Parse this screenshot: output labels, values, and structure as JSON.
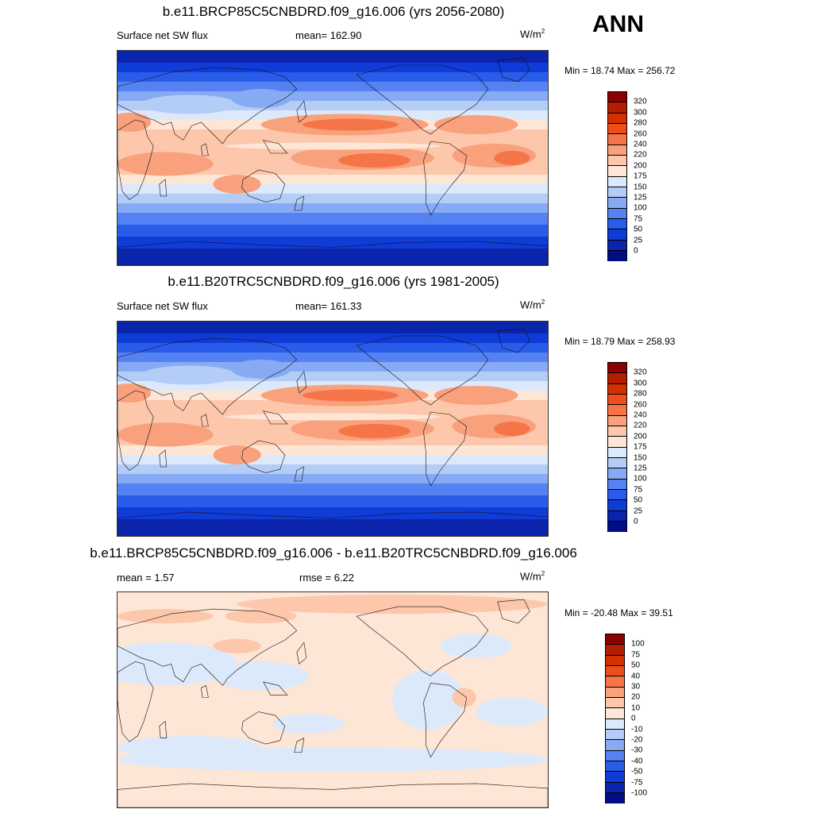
{
  "season": "ANN",
  "panels": [
    {
      "title": "b.e11.BRCP85C5CNBDRD.f09_g16.006 (yrs 2056-2080)",
      "left_label": "Surface net SW flux",
      "mid_label": "mean= 162.90",
      "units_base": "W/m",
      "units_sup": "2",
      "minmax": "Min =  18.74 Max = 256.72",
      "kind": "abs"
    },
    {
      "title": "b.e11.B20TRC5CNBDRD.f09_g16.006 (yrs 1981-2005)",
      "left_label": "Surface net SW flux",
      "mid_label": "mean= 161.33",
      "units_base": "W/m",
      "units_sup": "2",
      "minmax": "Min =  18.79 Max = 258.93",
      "kind": "abs"
    },
    {
      "title": "b.e11.BRCP85C5CNBDRD.f09_g16.006 - b.e11.B20TRC5CNBDRD.f09_g16.006",
      "left_label": "mean =   1.57",
      "mid_label": "rmse =   6.22",
      "units_base": "W/m",
      "units_sup": "2",
      "minmax": "Min = -20.48 Max =  39.51",
      "kind": "diff"
    }
  ],
  "colorbars": {
    "abs": {
      "ticks": [
        "320",
        "300",
        "280",
        "260",
        "240",
        "220",
        "200",
        "175",
        "150",
        "125",
        "100",
        "75",
        "50",
        "25",
        "0"
      ],
      "colors": [
        "#8b0000",
        "#b31d00",
        "#d33200",
        "#ef4e1a",
        "#f57548",
        "#f9a07c",
        "#fcc7ab",
        "#fee6d6",
        "#dbe9fb",
        "#b4cdf7",
        "#87aaf5",
        "#5582f2",
        "#2a5cea",
        "#0f3bd6",
        "#0a24ac",
        "#000e85"
      ]
    },
    "diff": {
      "ticks": [
        "100",
        "75",
        "50",
        "40",
        "30",
        "20",
        "10",
        "0",
        "-10",
        "-20",
        "-30",
        "-40",
        "-50",
        "-75",
        "-100"
      ],
      "colors": [
        "#8b0000",
        "#b31d00",
        "#d33200",
        "#ef4e1a",
        "#f57548",
        "#f9a07c",
        "#fcc7ab",
        "#fee6d6",
        "#dbe9fb",
        "#b4cdf7",
        "#87aaf5",
        "#5582f2",
        "#2a5cea",
        "#0f3bd6",
        "#0a24ac",
        "#000e85"
      ]
    }
  }
}
